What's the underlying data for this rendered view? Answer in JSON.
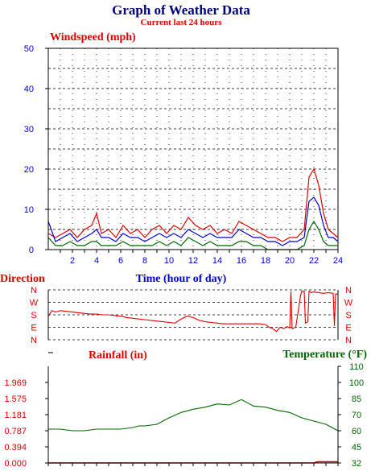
{
  "title": "Graph of Weather Data",
  "subtitle": "Current last 24 hours",
  "chart_data": [
    {
      "type": "line",
      "title": "Windspeed (mph)",
      "xlabel": "Time (hour of day)",
      "xlim": [
        0,
        24
      ],
      "ylim": [
        0,
        50
      ],
      "x_ticks": [
        "2",
        "4",
        "6",
        "8",
        "10",
        "12",
        "14",
        "16",
        "18",
        "20",
        "22",
        "24"
      ],
      "y_ticks": [
        "0",
        "10",
        "20",
        "30",
        "40",
        "50"
      ],
      "grid": true,
      "colors": {
        "gust": "#dd0000",
        "average": "#0000cc",
        "low": "#006600"
      },
      "series": [
        {
          "values": [
            [
              0.0,
              4
            ],
            [
              0.6,
              3
            ],
            [
              1.2,
              4
            ],
            [
              1.8,
              5
            ],
            [
              2.4,
              3
            ],
            [
              3.0,
              5
            ],
            [
              3.6,
              6
            ],
            [
              4.0,
              9
            ],
            [
              4.4,
              4
            ],
            [
              5.0,
              5
            ],
            [
              5.6,
              3
            ],
            [
              6.2,
              6
            ],
            [
              6.8,
              4
            ],
            [
              7.4,
              5
            ],
            [
              8.0,
              3
            ],
            [
              8.6,
              5
            ],
            [
              9.2,
              6
            ],
            [
              9.8,
              4
            ],
            [
              10.4,
              6
            ],
            [
              11.0,
              5
            ],
            [
              11.6,
              8
            ],
            [
              12.2,
              6
            ],
            [
              12.8,
              5
            ],
            [
              13.4,
              6
            ],
            [
              14.0,
              4
            ],
            [
              14.6,
              5
            ],
            [
              15.2,
              4
            ],
            [
              15.8,
              7
            ],
            [
              16.4,
              6
            ],
            [
              17.0,
              5
            ],
            [
              17.6,
              4
            ],
            [
              18.2,
              3
            ],
            [
              18.8,
              3
            ],
            [
              19.4,
              2
            ],
            [
              20.0,
              3
            ],
            [
              20.6,
              3
            ],
            [
              21.2,
              5
            ],
            [
              21.6,
              18
            ],
            [
              22.0,
              20
            ],
            [
              22.4,
              16
            ],
            [
              22.8,
              9
            ],
            [
              23.2,
              5
            ],
            [
              23.6,
              4
            ],
            [
              24.0,
              3
            ]
          ]
        },
        {
          "values": [
            [
              0.0,
              7
            ],
            [
              0.6,
              2
            ],
            [
              1.2,
              3
            ],
            [
              1.8,
              4
            ],
            [
              2.4,
              2
            ],
            [
              3.0,
              3
            ],
            [
              3.6,
              4
            ],
            [
              4.0,
              5
            ],
            [
              4.4,
              3
            ],
            [
              5.0,
              3
            ],
            [
              5.6,
              2
            ],
            [
              6.2,
              4
            ],
            [
              6.8,
              3
            ],
            [
              7.4,
              3
            ],
            [
              8.0,
              2
            ],
            [
              8.6,
              3
            ],
            [
              9.2,
              4
            ],
            [
              9.8,
              3
            ],
            [
              10.4,
              4
            ],
            [
              11.0,
              3
            ],
            [
              11.6,
              5
            ],
            [
              12.2,
              4
            ],
            [
              12.8,
              3
            ],
            [
              13.4,
              4
            ],
            [
              14.0,
              3
            ],
            [
              14.6,
              3
            ],
            [
              15.2,
              3
            ],
            [
              15.8,
              5
            ],
            [
              16.4,
              4
            ],
            [
              17.0,
              3
            ],
            [
              17.6,
              3
            ],
            [
              18.2,
              2
            ],
            [
              18.8,
              2
            ],
            [
              19.4,
              1
            ],
            [
              20.0,
              2
            ],
            [
              20.6,
              2
            ],
            [
              21.2,
              3
            ],
            [
              21.6,
              12
            ],
            [
              22.0,
              13
            ],
            [
              22.4,
              11
            ],
            [
              22.8,
              6
            ],
            [
              23.2,
              3
            ],
            [
              23.6,
              3
            ],
            [
              24.0,
              2
            ]
          ]
        },
        {
          "values": [
            [
              0.0,
              3
            ],
            [
              0.6,
              1
            ],
            [
              1.2,
              1
            ],
            [
              1.8,
              2
            ],
            [
              2.4,
              1
            ],
            [
              3.0,
              1
            ],
            [
              3.6,
              2
            ],
            [
              4.0,
              2
            ],
            [
              4.4,
              1
            ],
            [
              5.0,
              1
            ],
            [
              5.6,
              1
            ],
            [
              6.2,
              2
            ],
            [
              6.8,
              1
            ],
            [
              7.4,
              1
            ],
            [
              8.0,
              1
            ],
            [
              8.6,
              1
            ],
            [
              9.2,
              2
            ],
            [
              9.8,
              1
            ],
            [
              10.4,
              2
            ],
            [
              11.0,
              1
            ],
            [
              11.6,
              3
            ],
            [
              12.2,
              2
            ],
            [
              12.8,
              1
            ],
            [
              13.4,
              2
            ],
            [
              14.0,
              1
            ],
            [
              14.6,
              1
            ],
            [
              15.2,
              1
            ],
            [
              15.8,
              2
            ],
            [
              16.4,
              2
            ],
            [
              17.0,
              1
            ],
            [
              17.6,
              1
            ],
            [
              18.2,
              0
            ],
            [
              18.8,
              0
            ],
            [
              19.4,
              0
            ],
            [
              20.0,
              0
            ],
            [
              20.6,
              0
            ],
            [
              21.2,
              1
            ],
            [
              21.6,
              5
            ],
            [
              22.0,
              7
            ],
            [
              22.4,
              5
            ],
            [
              22.8,
              2
            ],
            [
              23.2,
              1
            ],
            [
              23.6,
              1
            ],
            [
              24.0,
              1
            ]
          ]
        }
      ]
    },
    {
      "type": "line",
      "title": "Direction",
      "xlim": [
        0,
        24
      ],
      "y_ticks": [
        "N",
        "W",
        "S",
        "E",
        "N"
      ],
      "ylim": [
        0,
        360
      ],
      "grid": true,
      "colors": {
        "direction": "#dd0000"
      },
      "series": [
        {
          "values": [
            [
              0.0,
              170
            ],
            [
              0.3,
              210
            ],
            [
              0.6,
              200
            ],
            [
              1.0,
              210
            ],
            [
              1.5,
              205
            ],
            [
              2.0,
              200
            ],
            [
              2.5,
              195
            ],
            [
              3.0,
              190
            ],
            [
              3.5,
              185
            ],
            [
              4.0,
              185
            ],
            [
              4.5,
              180
            ],
            [
              5.0,
              180
            ],
            [
              5.5,
              175
            ],
            [
              6.0,
              170
            ],
            [
              6.5,
              160
            ],
            [
              7.0,
              155
            ],
            [
              7.5,
              150
            ],
            [
              8.0,
              145
            ],
            [
              8.5,
              140
            ],
            [
              9.0,
              135
            ],
            [
              9.5,
              130
            ],
            [
              10.0,
              125
            ],
            [
              10.5,
              120
            ],
            [
              11.0,
              150
            ],
            [
              11.5,
              170
            ],
            [
              12.0,
              160
            ],
            [
              12.5,
              140
            ],
            [
              13.0,
              130
            ],
            [
              13.5,
              125
            ],
            [
              14.0,
              120
            ],
            [
              14.5,
              115
            ],
            [
              15.0,
              115
            ],
            [
              15.5,
              115
            ],
            [
              16.0,
              115
            ],
            [
              16.5,
              115
            ],
            [
              17.0,
              115
            ],
            [
              17.5,
              115
            ],
            [
              18.0,
              110
            ],
            [
              18.3,
              90
            ],
            [
              18.6,
              80
            ],
            [
              18.9,
              60
            ],
            [
              19.2,
              90
            ],
            [
              19.5,
              80
            ],
            [
              19.8,
              95
            ],
            [
              20.0,
              85
            ],
            [
              20.1,
              350
            ],
            [
              20.2,
              80
            ],
            [
              20.5,
              90
            ],
            [
              20.9,
              320
            ],
            [
              21.0,
              350
            ],
            [
              21.2,
              350
            ],
            [
              21.3,
              120
            ],
            [
              21.5,
              130
            ],
            [
              21.6,
              350
            ],
            [
              21.8,
              340
            ],
            [
              22.0,
              345
            ],
            [
              22.4,
              340
            ],
            [
              22.8,
              335
            ],
            [
              23.2,
              340
            ],
            [
              23.6,
              335
            ],
            [
              23.7,
              100
            ],
            [
              23.8,
              330
            ],
            [
              24.0,
              330
            ]
          ]
        }
      ]
    },
    {
      "type": "line",
      "title": "Rainfall (in)",
      "xlim": [
        0,
        24
      ],
      "y_ticks": [
        "0.000",
        "0.394",
        "0.787",
        "1.181",
        "1.575",
        "1.969"
      ],
      "ylim": [
        0,
        2.362
      ],
      "colors": {
        "rainfall": "#dd0000"
      },
      "series": [
        {
          "values": [
            [
              0,
              0
            ],
            [
              22.0,
              0
            ],
            [
              22.3,
              0.03
            ],
            [
              24.0,
              0.03
            ]
          ]
        }
      ]
    },
    {
      "type": "line",
      "title": "Temperature (°F)",
      "xlim": [
        0,
        24
      ],
      "y_ticks": [
        "32",
        "45",
        "60",
        "70",
        "85",
        "100",
        "110"
      ],
      "ylim": [
        32,
        110
      ],
      "colors": {
        "temperature": "#006600"
      },
      "series": [
        {
          "values": [
            [
              0.0,
              61
            ],
            [
              1.0,
              61
            ],
            [
              2.0,
              60
            ],
            [
              3.0,
              60
            ],
            [
              4.0,
              61
            ],
            [
              5.0,
              61
            ],
            [
              6.0,
              61
            ],
            [
              7.0,
              62
            ],
            [
              7.5,
              63
            ],
            [
              8.0,
              63
            ],
            [
              9.0,
              64
            ],
            [
              10.0,
              68
            ],
            [
              11.0,
              72
            ],
            [
              12.0,
              75
            ],
            [
              13.0,
              77
            ],
            [
              14.0,
              80
            ],
            [
              15.0,
              79
            ],
            [
              16.0,
              84
            ],
            [
              16.5,
              81
            ],
            [
              17.0,
              78
            ],
            [
              18.0,
              77
            ],
            [
              19.0,
              74
            ],
            [
              20.0,
              72
            ],
            [
              21.0,
              68
            ],
            [
              22.0,
              66
            ],
            [
              23.0,
              64
            ],
            [
              24.0,
              60
            ]
          ]
        }
      ]
    }
  ]
}
